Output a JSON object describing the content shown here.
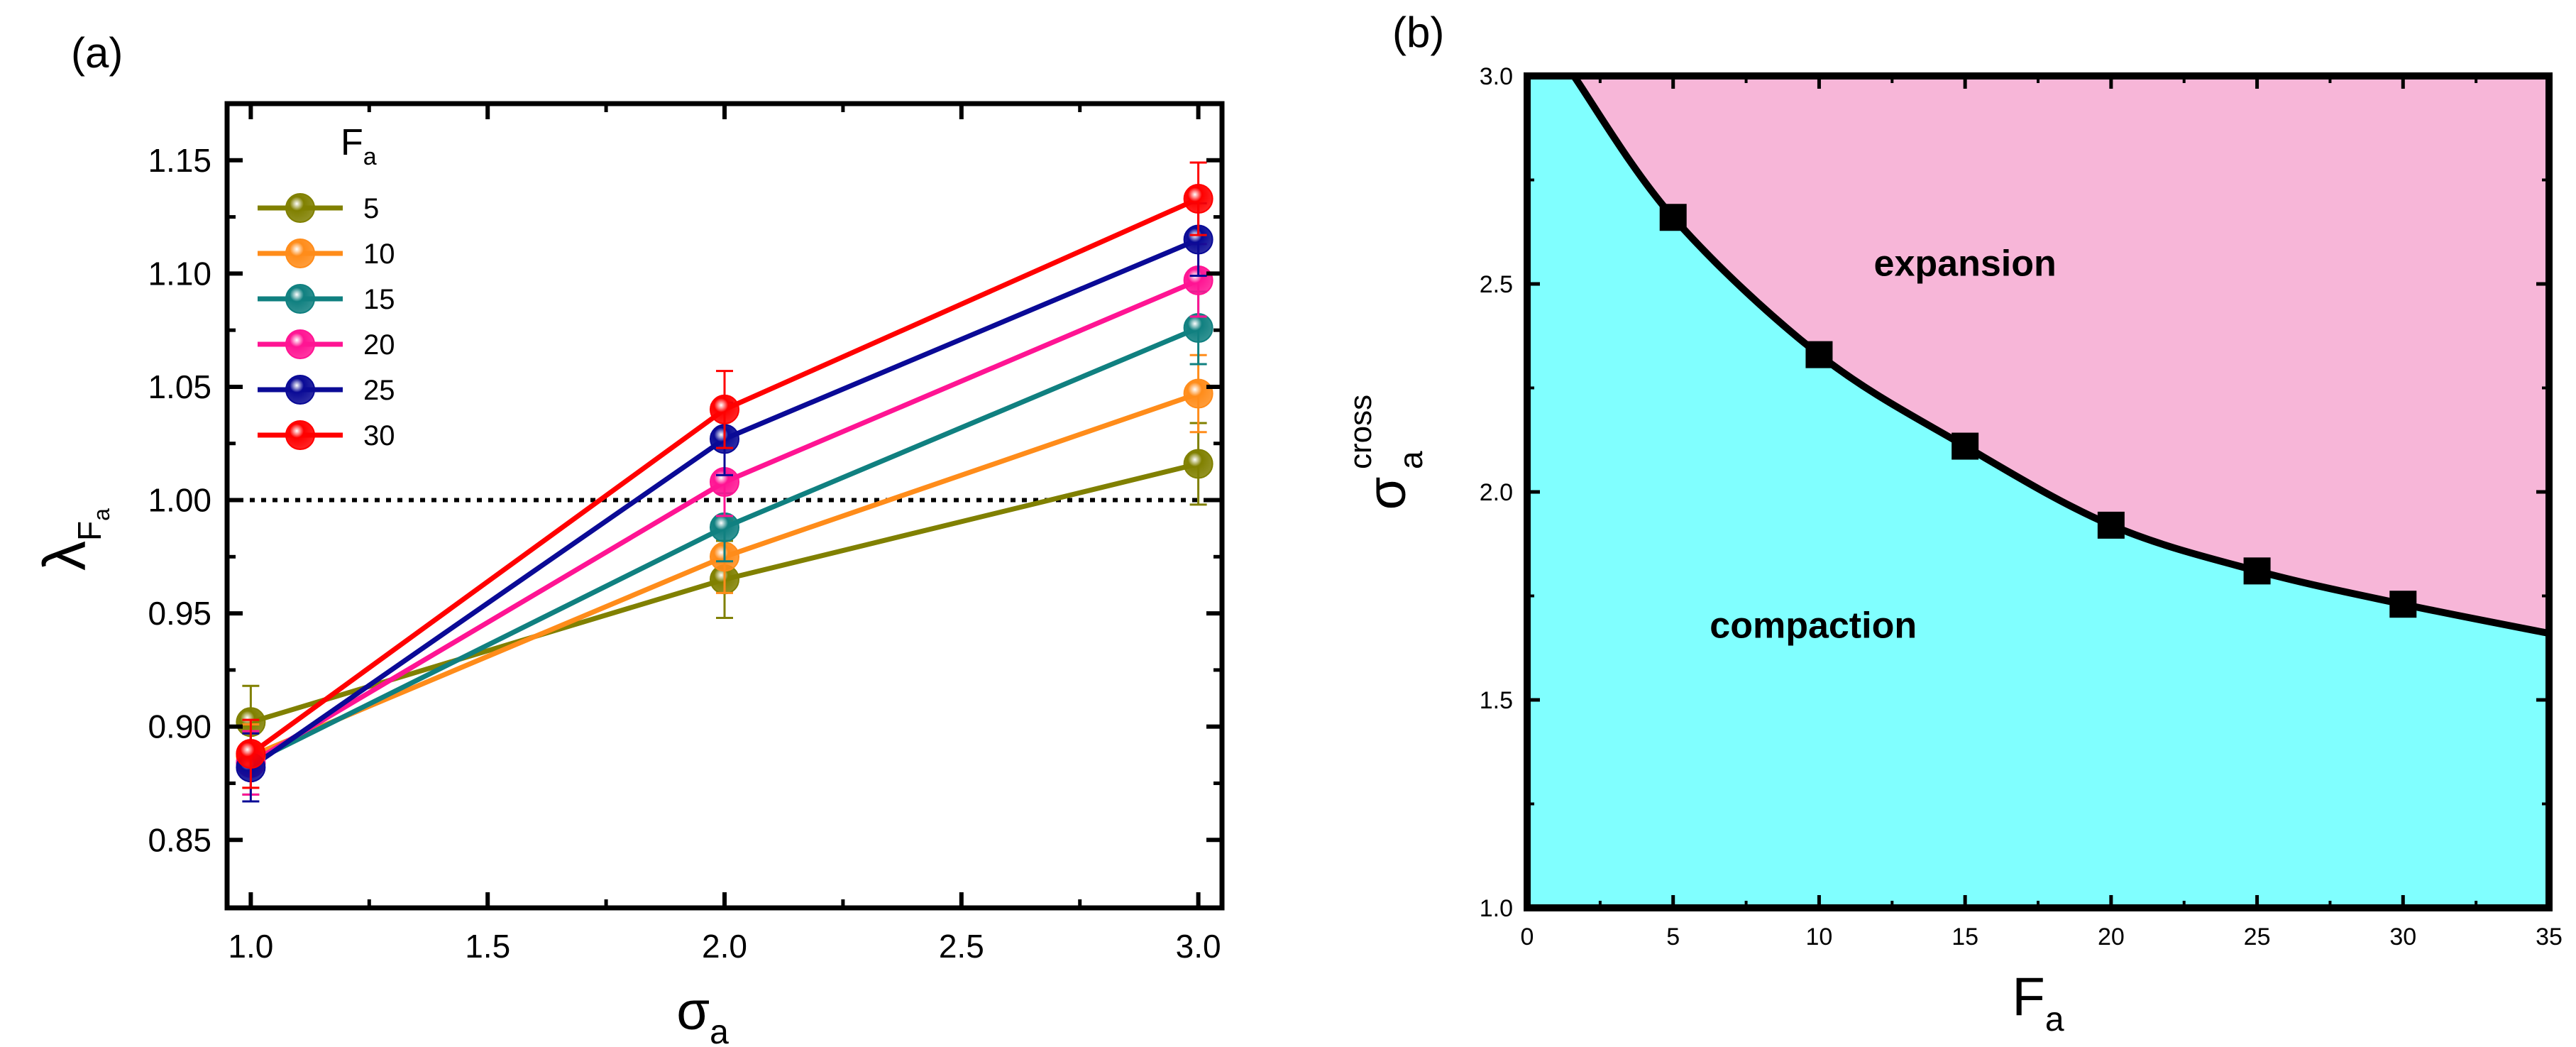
{
  "colors": {
    "background": "#ffffff",
    "expansion_fill": "#f7b6d8",
    "compaction_fill": "#80ffff",
    "axis": "#000000"
  },
  "chart_data": [
    {
      "panel": "(a)",
      "type": "line",
      "x": [
        1.0,
        2.0,
        3.0
      ],
      "xlabel": "σ",
      "xlabel_sub": "a",
      "ylabel": "λ",
      "ylabel_sub": "F",
      "ylabel_subsub": "a",
      "xlim": [
        0.95,
        3.05
      ],
      "ylim": [
        0.82,
        1.175
      ],
      "xticks": [
        "1.0",
        "1.5",
        "2.0",
        "2.5",
        "3.0"
      ],
      "xtick_values": [
        1.0,
        1.5,
        2.0,
        2.5,
        3.0
      ],
      "yticks": [
        "0.85",
        "0.90",
        "0.95",
        "1.00",
        "1.05",
        "1.10",
        "1.15"
      ],
      "ytick_values": [
        0.85,
        0.9,
        0.95,
        1.0,
        1.05,
        1.1,
        1.15
      ],
      "reference_line": 1.0,
      "legend_title": "F",
      "legend_title_sub": "a",
      "legend_position": "top-left",
      "series": [
        {
          "name": "5",
          "color": "#808000",
          "values": [
            0.902,
            0.965,
            1.016
          ],
          "errors": [
            0.016,
            0.017,
            0.018
          ]
        },
        {
          "name": "10",
          "color": "#ff8c1a",
          "values": [
            0.887,
            0.975,
            1.047
          ],
          "errors": [
            0.014,
            0.016,
            0.017
          ]
        },
        {
          "name": "15",
          "color": "#108080",
          "values": [
            0.884,
            0.988,
            1.076
          ],
          "errors": [
            0.014,
            0.015,
            0.016
          ]
        },
        {
          "name": "20",
          "color": "#ff1493",
          "values": [
            0.884,
            1.008,
            1.097
          ],
          "errors": [
            0.014,
            0.015,
            0.016
          ]
        },
        {
          "name": "25",
          "color": "#0a0a96",
          "values": [
            0.882,
            1.027,
            1.115
          ],
          "errors": [
            0.015,
            0.016,
            0.016
          ]
        },
        {
          "name": "30",
          "color": "#ff0000",
          "values": [
            0.888,
            1.04,
            1.133
          ],
          "errors": [
            0.015,
            0.017,
            0.016
          ]
        }
      ]
    },
    {
      "panel": "(b)",
      "type": "area",
      "x": [
        5,
        10,
        15,
        20,
        25,
        30
      ],
      "values": [
        2.66,
        2.33,
        2.11,
        1.92,
        1.81,
        1.73
      ],
      "curve_endpoints": {
        "start": [
          1.6,
          3.0
        ],
        "end": [
          35,
          1.66
        ]
      },
      "xlabel": "F",
      "xlabel_sub": "a",
      "ylabel": "σ",
      "ylabel_sub": "a",
      "ylabel_sup": "cross",
      "xlim": [
        0,
        35
      ],
      "ylim": [
        1.0,
        3.0
      ],
      "xticks": [
        "0",
        "5",
        "10",
        "15",
        "20",
        "25",
        "30",
        "35"
      ],
      "xtick_values": [
        0,
        5,
        10,
        15,
        20,
        25,
        30,
        35
      ],
      "yticks": [
        "1.0",
        "1.5",
        "2.0",
        "2.5",
        "3.0"
      ],
      "ytick_values": [
        1.0,
        1.5,
        2.0,
        2.5,
        3.0
      ],
      "regions": [
        {
          "name": "expansion",
          "label": "expansion",
          "anchor": [
            15,
            2.55
          ]
        },
        {
          "name": "compaction",
          "label": "compaction",
          "anchor": [
            9.8,
            1.68
          ]
        }
      ]
    }
  ]
}
